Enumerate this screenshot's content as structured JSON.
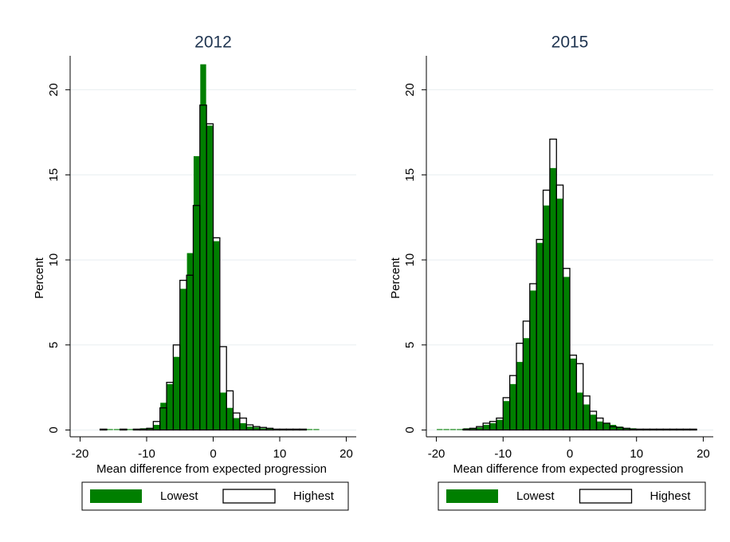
{
  "chart_data": [
    {
      "type": "histogram",
      "title": "2012",
      "xlabel": "Mean difference from expected progression",
      "ylabel": "Percent",
      "bins": [
        -17,
        -16,
        -15,
        -14,
        -13,
        -12,
        -11,
        -10,
        -9,
        -8,
        -7,
        -6,
        -5,
        -4,
        -3,
        -2,
        -1,
        0,
        1,
        2,
        3,
        4,
        5,
        6,
        7,
        8,
        9,
        10,
        11,
        12,
        13,
        14,
        15,
        16
      ],
      "series": [
        {
          "name": "Lowest",
          "color": "#007f00",
          "values": [
            0,
            0.05,
            0.05,
            0.05,
            0.05,
            0.05,
            0.1,
            0.1,
            0.3,
            1.6,
            2.7,
            4.3,
            8.3,
            10.4,
            16.1,
            21.5,
            17.9,
            11.1,
            2.2,
            1.3,
            0.7,
            0.4,
            0.2,
            0.15,
            0.1,
            0.1,
            0.05,
            0.05,
            0.05,
            0.05,
            0.05,
            0.05,
            0.05
          ]
        },
        {
          "name": "Highest",
          "color": "#000000",
          "values": [
            0.05,
            0,
            0,
            0.05,
            0,
            0.05,
            0.05,
            0.1,
            0.5,
            1.3,
            2.8,
            5.0,
            8.8,
            9.1,
            13.2,
            19.1,
            18.0,
            11.3,
            4.9,
            2.3,
            1.0,
            0.7,
            0.3,
            0.2,
            0.15,
            0.1,
            0.05,
            0.05,
            0.05,
            0.05,
            0.05,
            0,
            0
          ]
        }
      ],
      "xlim": [
        -21.5,
        21.5
      ],
      "ylim": [
        -0.4,
        22
      ],
      "xticks": [
        -20,
        -10,
        0,
        10,
        20
      ],
      "yticks": [
        0,
        5,
        10,
        15,
        20
      ],
      "grid": true
    },
    {
      "type": "histogram",
      "title": "2015",
      "xlabel": "Mean difference from expected progression",
      "ylabel": "Percent",
      "bins": [
        -20,
        -19,
        -18,
        -17,
        -16,
        -15,
        -14,
        -13,
        -12,
        -11,
        -10,
        -9,
        -8,
        -7,
        -6,
        -5,
        -4,
        -3,
        -2,
        -1,
        0,
        1,
        2,
        3,
        4,
        5,
        6,
        7,
        8,
        9,
        10,
        11,
        12,
        13,
        14,
        15,
        16,
        17,
        18,
        19
      ],
      "series": [
        {
          "name": "Lowest",
          "color": "#007f00",
          "values": [
            0.05,
            0.05,
            0.05,
            0.05,
            0.1,
            0.1,
            0.15,
            0.3,
            0.4,
            0.6,
            1.7,
            2.7,
            4.0,
            5.4,
            8.2,
            11.0,
            13.2,
            15.4,
            13.6,
            9.0,
            4.2,
            2.2,
            1.5,
            0.9,
            0.5,
            0.4,
            0.3,
            0.2,
            0.1,
            0.1,
            0.05,
            0.05,
            0.05,
            0.05,
            0.05,
            0.05,
            0.05,
            0.05,
            0.05
          ]
        },
        {
          "name": "Highest",
          "color": "#000000",
          "values": [
            0,
            0,
            0,
            0,
            0.05,
            0.1,
            0.2,
            0.4,
            0.5,
            0.7,
            1.9,
            3.2,
            5.1,
            6.4,
            8.6,
            11.2,
            14.1,
            17.1,
            14.4,
            9.5,
            4.4,
            3.9,
            2.0,
            1.1,
            0.7,
            0.4,
            0.2,
            0.15,
            0.1,
            0.05,
            0.05,
            0.05,
            0.05,
            0.05,
            0.05,
            0.05,
            0.05,
            0.05,
            0.05
          ]
        }
      ],
      "xlim": [
        -21.5,
        21.5
      ],
      "ylim": [
        -0.4,
        22
      ],
      "xticks": [
        -20,
        -10,
        0,
        10,
        20
      ],
      "yticks": [
        0,
        5,
        10,
        15,
        20
      ],
      "grid": true
    }
  ]
}
